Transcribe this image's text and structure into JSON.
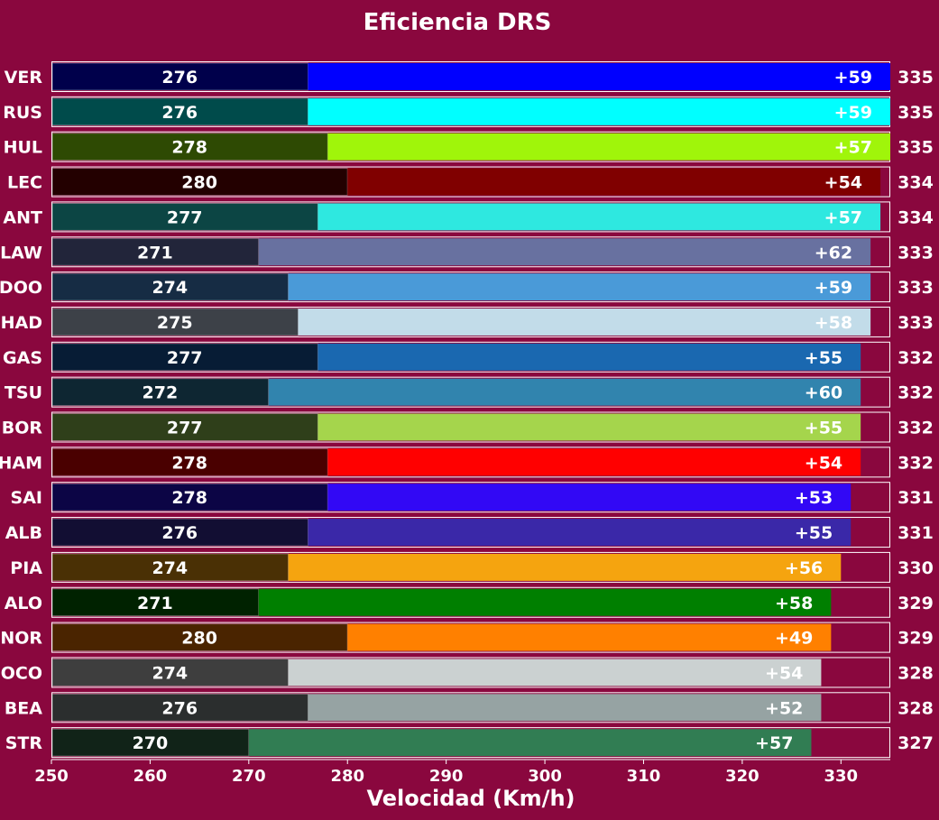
{
  "chart_data": {
    "type": "bar",
    "orientation": "horizontal",
    "stacked": true,
    "title": "Eficiencia DRS",
    "xlabel": "Velocidad (Km/h)",
    "ylabel": "",
    "xlim": [
      250,
      335
    ],
    "xticks": [
      250,
      260,
      270,
      280,
      290,
      300,
      310,
      320,
      330
    ],
    "grid": false,
    "background": "#8a073e",
    "rows": [
      {
        "driver": "VER",
        "base": 276,
        "delta": 59,
        "delta_label": "+59",
        "top": 335,
        "color": "#0000ff",
        "base_color": "#00004b"
      },
      {
        "driver": "RUS",
        "base": 276,
        "delta": 59,
        "delta_label": "+59",
        "top": 335,
        "color": "#00ffff",
        "base_color": "#004b4b"
      },
      {
        "driver": "HUL",
        "base": 278,
        "delta": 57,
        "delta_label": "+57",
        "top": 335,
        "color": "#a0f50a",
        "base_color": "#2e4a03"
      },
      {
        "driver": "LEC",
        "base": 280,
        "delta": 54,
        "delta_label": "+54",
        "top": 334,
        "color": "#800000",
        "base_color": "#230000"
      },
      {
        "driver": "ANT",
        "base": 277,
        "delta": 57,
        "delta_label": "+57",
        "top": 334,
        "color": "#2ee8e0",
        "base_color": "#0c4544"
      },
      {
        "driver": "LAW",
        "base": 271,
        "delta": 62,
        "delta_label": "+62",
        "top": 333,
        "color": "#6871a0",
        "base_color": "#22253a"
      },
      {
        "driver": "DOO",
        "base": 274,
        "delta": 59,
        "delta_label": "+59",
        "top": 333,
        "color": "#4a9ad8",
        "base_color": "#162c44"
      },
      {
        "driver": "HAD",
        "base": 275,
        "delta": 58,
        "delta_label": "+58",
        "top": 333,
        "color": "#c2dce9",
        "base_color": "#3d4148"
      },
      {
        "driver": "GAS",
        "base": 277,
        "delta": 55,
        "delta_label": "+55",
        "top": 332,
        "color": "#1a68b0",
        "base_color": "#071c35"
      },
      {
        "driver": "TSU",
        "base": 272,
        "delta": 60,
        "delta_label": "+60",
        "top": 332,
        "color": "#3184ae",
        "base_color": "#0e2632"
      },
      {
        "driver": "BOR",
        "base": 277,
        "delta": 55,
        "delta_label": "+55",
        "top": 332,
        "color": "#a5d54c",
        "base_color": "#2f3f1a"
      },
      {
        "driver": "HAM",
        "base": 278,
        "delta": 54,
        "delta_label": "+54",
        "top": 332,
        "color": "#ff0000",
        "base_color": "#4a0000"
      },
      {
        "driver": "SAI",
        "base": 278,
        "delta": 53,
        "delta_label": "+53",
        "top": 331,
        "color": "#3208f5",
        "base_color": "#0c0545"
      },
      {
        "driver": "ALB",
        "base": 276,
        "delta": 55,
        "delta_label": "+55",
        "top": 331,
        "color": "#3a28a8",
        "base_color": "#120e33"
      },
      {
        "driver": "PIA",
        "base": 274,
        "delta": 56,
        "delta_label": "+56",
        "top": 330,
        "color": "#f5a40f",
        "base_color": "#4a3005"
      },
      {
        "driver": "ALO",
        "base": 271,
        "delta": 58,
        "delta_label": "+58",
        "top": 329,
        "color": "#007f00",
        "base_color": "#002200"
      },
      {
        "driver": "NOR",
        "base": 280,
        "delta": 49,
        "delta_label": "+49",
        "top": 329,
        "color": "#ff8000",
        "base_color": "#4a2400"
      },
      {
        "driver": "OCO",
        "base": 274,
        "delta": 54,
        "delta_label": "+54",
        "top": 328,
        "color": "#cbd1d1",
        "base_color": "#3e3e3e"
      },
      {
        "driver": "BEA",
        "base": 276,
        "delta": 52,
        "delta_label": "+52",
        "top": 328,
        "color": "#96a3a3",
        "base_color": "#2b2e2e"
      },
      {
        "driver": "STR",
        "base": 270,
        "delta": 57,
        "delta_label": "+57",
        "top": 327,
        "color": "#317d53",
        "base_color": "#112318"
      }
    ]
  }
}
